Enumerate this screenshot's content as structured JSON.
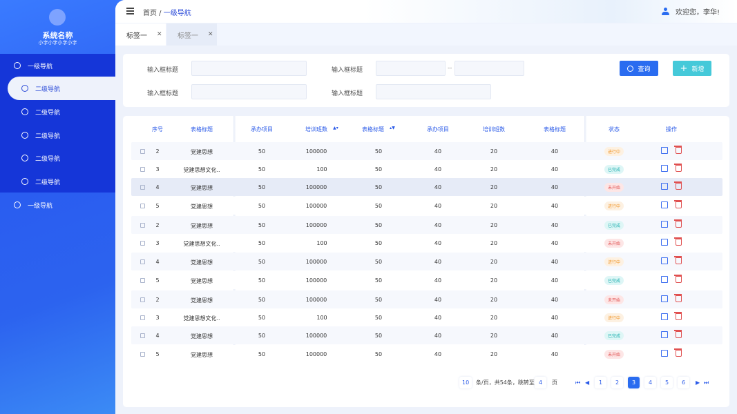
{
  "brand": {
    "name": "系统名称",
    "subtitle": "小字小字小字小字"
  },
  "sidebar": {
    "items": [
      {
        "label": "一级导航",
        "level": 1,
        "icon": "compass-icon"
      },
      {
        "label": "二级导航",
        "level": 2,
        "active": true,
        "icon": "user-circle-icon"
      },
      {
        "label": "二级导航",
        "level": 2,
        "icon": "user-circle-icon"
      },
      {
        "label": "二级导航",
        "level": 2,
        "icon": "user-circle-icon"
      },
      {
        "label": "二级导航",
        "level": 2,
        "icon": "user-circle-icon"
      },
      {
        "label": "二级导航",
        "level": 2,
        "icon": "user-circle-icon"
      },
      {
        "label": "一级导航",
        "level": 1,
        "icon": "compass-icon"
      }
    ]
  },
  "header": {
    "breadcrumb_home": "首页",
    "breadcrumb_sep": " / ",
    "breadcrumb_current": "一级导航",
    "welcome": "欢迎您，李华!"
  },
  "tabs": [
    {
      "label": "标签一",
      "active": true
    },
    {
      "label": "标签一",
      "active": false
    }
  ],
  "filters": {
    "label1": "输入框标题",
    "label2": "输入框标题",
    "label3": "输入框标题",
    "label4": "输入框标题",
    "range_sep": "--",
    "search_label": "查询",
    "add_label": "新增"
  },
  "table": {
    "headers": [
      "序号",
      "表格标题",
      "承办项目",
      "培训班数",
      "表格标题",
      "承办项目",
      "培训班数",
      "表格标题",
      "状态",
      "操作"
    ],
    "sort_asc_col": 3,
    "sort_desc_col": 4,
    "rows": [
      [
        "2",
        "党建思想",
        "50",
        "100000",
        "50",
        "40",
        "20",
        "40",
        "进行中"
      ],
      [
        "3",
        "党建思想文化..",
        "50",
        "100",
        "50",
        "40",
        "20",
        "40",
        "已完成"
      ],
      [
        "4",
        "党建思想",
        "50",
        "100000",
        "50",
        "40",
        "20",
        "40",
        "未开始"
      ],
      [
        "5",
        "党建思想",
        "50",
        "100000",
        "50",
        "40",
        "20",
        "40",
        "进行中"
      ],
      [
        "2",
        "党建思想",
        "50",
        "100000",
        "50",
        "40",
        "20",
        "40",
        "已完成"
      ],
      [
        "3",
        "党建思想文化..",
        "50",
        "100",
        "50",
        "40",
        "20",
        "40",
        "未开始"
      ],
      [
        "4",
        "党建思想",
        "50",
        "100000",
        "50",
        "40",
        "20",
        "40",
        "进行中"
      ],
      [
        "5",
        "党建思想",
        "50",
        "100000",
        "50",
        "40",
        "20",
        "40",
        "已完成"
      ],
      [
        "2",
        "党建思想",
        "50",
        "100000",
        "50",
        "40",
        "20",
        "40",
        "未开始"
      ],
      [
        "3",
        "党建思想文化..",
        "50",
        "100",
        "50",
        "40",
        "20",
        "40",
        "进行中"
      ],
      [
        "4",
        "党建思想",
        "50",
        "100000",
        "50",
        "40",
        "20",
        "40",
        "已完成"
      ],
      [
        "5",
        "党建思想",
        "50",
        "100000",
        "50",
        "40",
        "20",
        "40",
        "未开始"
      ]
    ]
  },
  "status_colors": {
    "进行中": [
      "#fdf1e2",
      "#f0962a"
    ],
    "已完成": [
      "#def6f6",
      "#1fb0b0"
    ],
    "未开始": [
      "#fde6e6",
      "#e05050"
    ]
  },
  "pagination": {
    "page_size": "10",
    "info": "条/页，共54条，跳转至",
    "jump_value": "4",
    "page_unit": "页",
    "pages": [
      "1",
      "2",
      "3",
      "4",
      "5",
      "6"
    ],
    "current": "3"
  },
  "colors": {
    "primary": "#2a6cf0",
    "add": "#45c9d9",
    "nav": "#1536d8"
  }
}
